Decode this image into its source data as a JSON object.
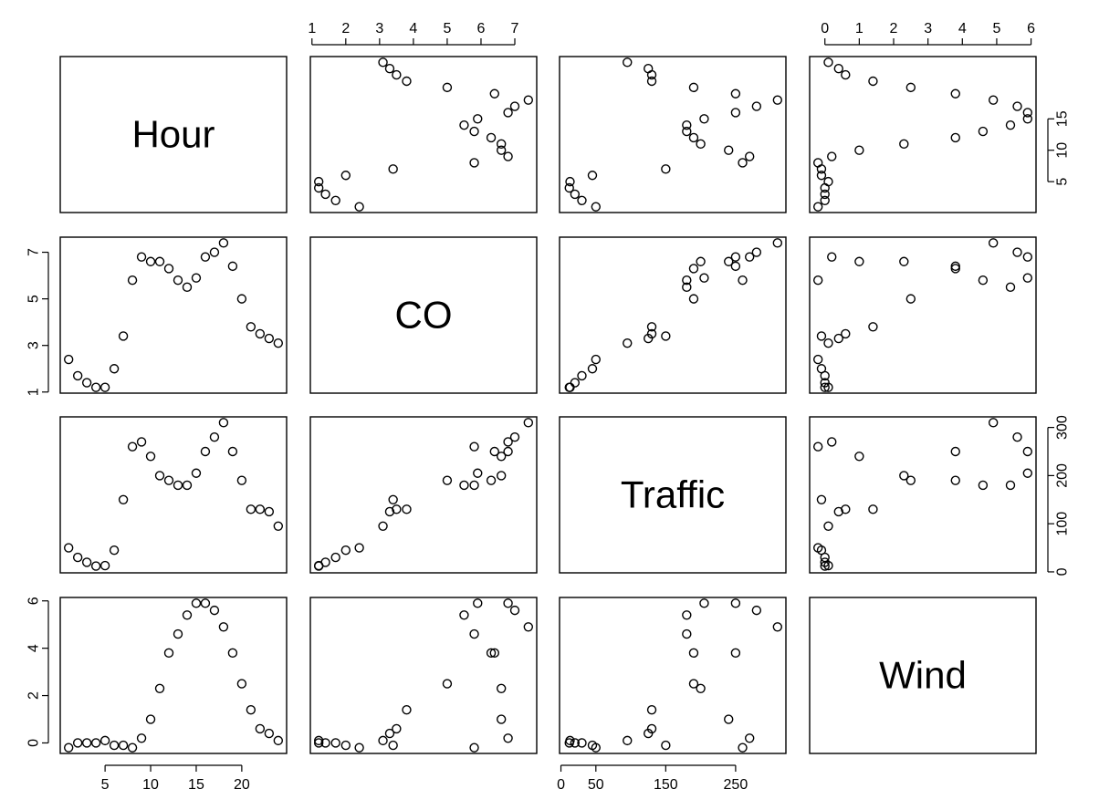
{
  "chart_data": {
    "type": "scatter",
    "variables": [
      "Hour",
      "CO",
      "Traffic",
      "Wind"
    ],
    "ranges": {
      "Hour": [
        1,
        24
      ],
      "CO": [
        1.2,
        7.4
      ],
      "Traffic": [
        10,
        310
      ],
      "Wind": [
        -0.2,
        5.9
      ]
    },
    "ticks": {
      "Hour": [
        5,
        10,
        15,
        20
      ],
      "CO": [
        1,
        2,
        3,
        4,
        5,
        6,
        7
      ],
      "CO_left": [
        1,
        3,
        5,
        7
      ],
      "Traffic": [
        0,
        50,
        150,
        250
      ],
      "Traffic_right": [
        0,
        100,
        200,
        300
      ],
      "Wind": [
        0,
        1,
        2,
        3,
        4,
        5,
        6
      ],
      "Wind_left": [
        0,
        2,
        4,
        6
      ],
      "Hour_right": [
        5,
        10,
        15
      ]
    },
    "data": {
      "Hour": [
        1,
        2,
        3,
        4,
        5,
        6,
        7,
        8,
        9,
        10,
        11,
        12,
        13,
        14,
        15,
        16,
        17,
        18,
        19,
        20,
        21,
        22,
        23,
        24
      ],
      "CO": [
        2.4,
        1.7,
        1.4,
        1.2,
        1.2,
        2.0,
        3.4,
        5.8,
        6.8,
        6.6,
        6.6,
        6.3,
        5.8,
        5.5,
        5.9,
        6.8,
        7.0,
        7.4,
        6.4,
        5.0,
        3.8,
        3.5,
        3.3,
        3.1
      ],
      "Traffic": [
        50,
        30,
        20,
        12,
        13,
        45,
        150,
        260,
        270,
        240,
        200,
        190,
        180,
        180,
        205,
        250,
        280,
        310,
        250,
        190,
        130,
        130,
        125,
        95
      ],
      "Wind": [
        -0.2,
        0.0,
        0.0,
        0.0,
        0.1,
        -0.1,
        -0.1,
        -0.2,
        0.2,
        1.0,
        2.3,
        3.8,
        4.6,
        5.4,
        5.9,
        5.9,
        5.6,
        4.9,
        3.8,
        2.5,
        1.4,
        0.6,
        0.4,
        0.1
      ]
    }
  }
}
